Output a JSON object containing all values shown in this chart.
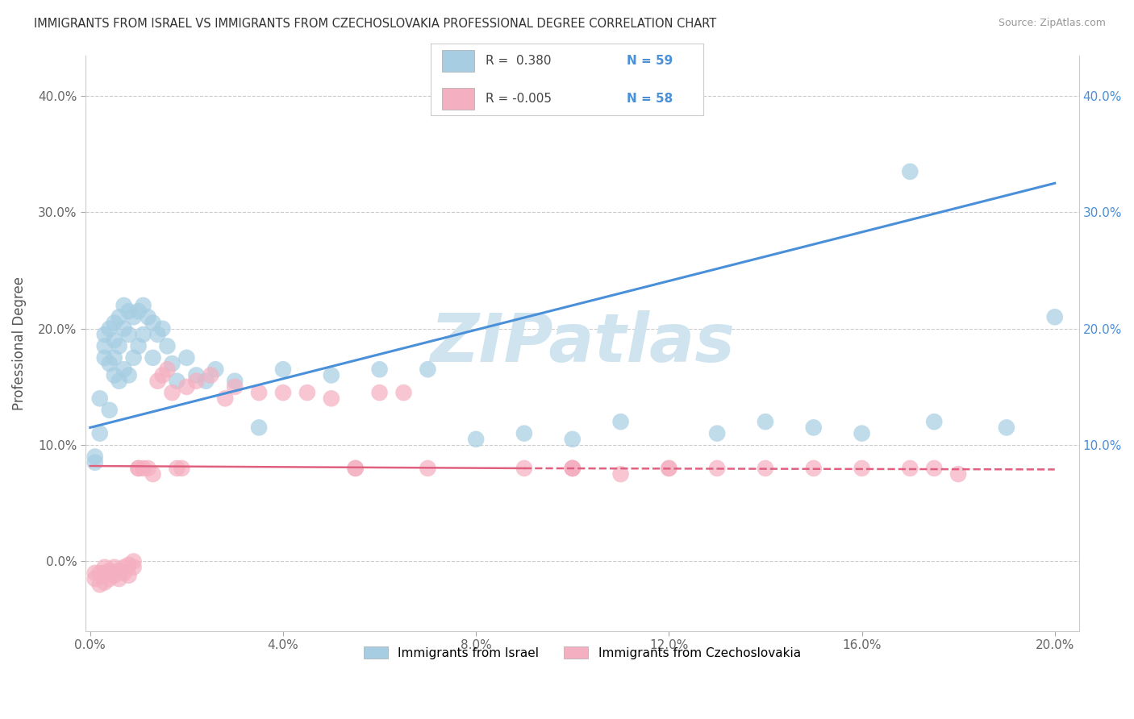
{
  "title": "IMMIGRANTS FROM ISRAEL VS IMMIGRANTS FROM CZECHOSLOVAKIA PROFESSIONAL DEGREE CORRELATION CHART",
  "source": "Source: ZipAtlas.com",
  "ylabel": "Professional Degree",
  "xlim": [
    -0.001,
    0.205
  ],
  "ylim": [
    -0.06,
    0.435
  ],
  "xticks": [
    0.0,
    0.04,
    0.08,
    0.12,
    0.16,
    0.2
  ],
  "xtick_labels": [
    "0.0%",
    "4.0%",
    "8.0%",
    "12.0%",
    "16.0%",
    "20.0%"
  ],
  "yticks": [
    0.0,
    0.1,
    0.2,
    0.3,
    0.4
  ],
  "ytick_labels": [
    "0.0%",
    "10.0%",
    "20.0%",
    "30.0%",
    "40.0%"
  ],
  "right_ytick_labels": [
    "10.0%",
    "20.0%",
    "30.0%",
    "40.0%"
  ],
  "legend_r1": "R =  0.380",
  "legend_n1": "N = 59",
  "legend_r2": "R = -0.005",
  "legend_n2": "N = 58",
  "legend_label1": "Immigrants from Israel",
  "legend_label2": "Immigrants from Czechoslovakia",
  "color_blue": "#a6cde2",
  "color_pink": "#f4afc0",
  "color_blue_line": "#4a90d9",
  "color_pink_line": "#e06080",
  "watermark": "ZIPatlas",
  "watermark_color": "#d0e4f0",
  "israel_x": [
    0.001,
    0.001,
    0.002,
    0.002,
    0.003,
    0.003,
    0.003,
    0.004,
    0.004,
    0.004,
    0.005,
    0.005,
    0.005,
    0.005,
    0.006,
    0.006,
    0.006,
    0.007,
    0.007,
    0.007,
    0.008,
    0.008,
    0.008,
    0.009,
    0.009,
    0.01,
    0.01,
    0.011,
    0.011,
    0.012,
    0.013,
    0.013,
    0.014,
    0.015,
    0.016,
    0.017,
    0.018,
    0.02,
    0.022,
    0.024,
    0.026,
    0.03,
    0.035,
    0.04,
    0.05,
    0.06,
    0.07,
    0.08,
    0.09,
    0.1,
    0.11,
    0.13,
    0.14,
    0.15,
    0.16,
    0.17,
    0.175,
    0.19,
    0.2
  ],
  "israel_y": [
    0.09,
    0.085,
    0.14,
    0.11,
    0.195,
    0.185,
    0.175,
    0.2,
    0.17,
    0.13,
    0.205,
    0.19,
    0.175,
    0.16,
    0.21,
    0.185,
    0.155,
    0.22,
    0.2,
    0.165,
    0.215,
    0.195,
    0.16,
    0.21,
    0.175,
    0.215,
    0.185,
    0.22,
    0.195,
    0.21,
    0.205,
    0.175,
    0.195,
    0.2,
    0.185,
    0.17,
    0.155,
    0.175,
    0.16,
    0.155,
    0.165,
    0.155,
    0.115,
    0.165,
    0.16,
    0.165,
    0.165,
    0.105,
    0.11,
    0.105,
    0.12,
    0.11,
    0.12,
    0.115,
    0.11,
    0.335,
    0.12,
    0.115,
    0.21
  ],
  "czech_x": [
    0.001,
    0.001,
    0.002,
    0.002,
    0.003,
    0.003,
    0.003,
    0.004,
    0.004,
    0.005,
    0.005,
    0.006,
    0.006,
    0.007,
    0.007,
    0.008,
    0.008,
    0.009,
    0.009,
    0.01,
    0.01,
    0.011,
    0.012,
    0.013,
    0.014,
    0.015,
    0.016,
    0.017,
    0.018,
    0.019,
    0.02,
    0.022,
    0.025,
    0.028,
    0.03,
    0.035,
    0.04,
    0.045,
    0.05,
    0.055,
    0.06,
    0.065,
    0.07,
    0.09,
    0.1,
    0.11,
    0.12,
    0.13,
    0.14,
    0.15,
    0.16,
    0.17,
    0.175,
    0.18,
    0.055,
    0.1,
    0.1,
    0.12
  ],
  "czech_y": [
    -0.01,
    -0.015,
    -0.01,
    -0.02,
    -0.005,
    -0.01,
    -0.018,
    -0.008,
    -0.015,
    -0.005,
    -0.012,
    -0.008,
    -0.015,
    -0.005,
    -0.01,
    -0.003,
    -0.012,
    0.0,
    -0.005,
    0.08,
    0.08,
    0.08,
    0.08,
    0.075,
    0.155,
    0.16,
    0.165,
    0.145,
    0.08,
    0.08,
    0.15,
    0.155,
    0.16,
    0.14,
    0.15,
    0.145,
    0.145,
    0.145,
    0.14,
    0.08,
    0.145,
    0.145,
    0.08,
    0.08,
    0.08,
    0.075,
    0.08,
    0.08,
    0.08,
    0.08,
    0.08,
    0.08,
    0.08,
    0.075,
    0.08,
    0.08,
    0.08,
    0.08
  ],
  "background_color": "#ffffff",
  "grid_color": "#cccccc"
}
